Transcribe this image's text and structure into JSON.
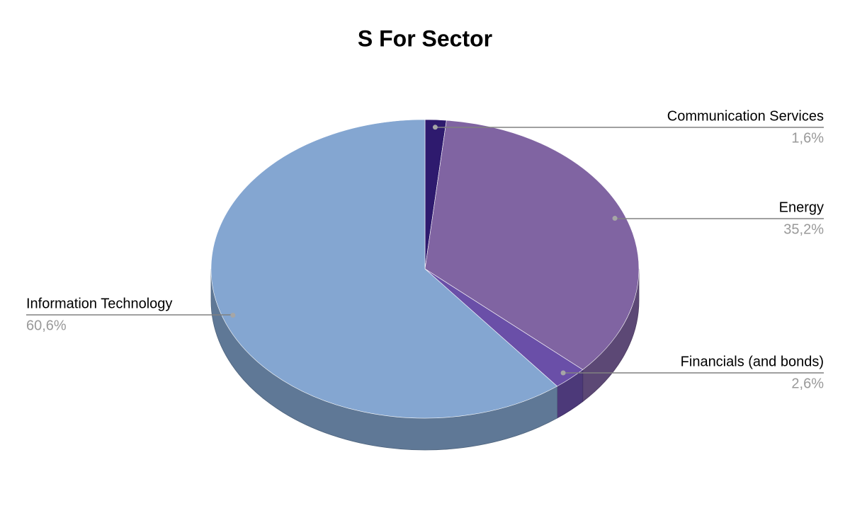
{
  "chart_data": {
    "type": "pie",
    "title": "S For Sector",
    "categories": [
      "Communication Services",
      "Energy",
      "Financials (and bonds)",
      "Information Technology"
    ],
    "values": [
      1.6,
      35.2,
      2.6,
      60.6
    ],
    "value_labels": [
      "1,6%",
      "35,2%",
      "2,6%",
      "60,6%"
    ],
    "colors": [
      "#2e1a6e",
      "#8064a2",
      "#6a4fa8",
      "#84a6d1"
    ]
  }
}
